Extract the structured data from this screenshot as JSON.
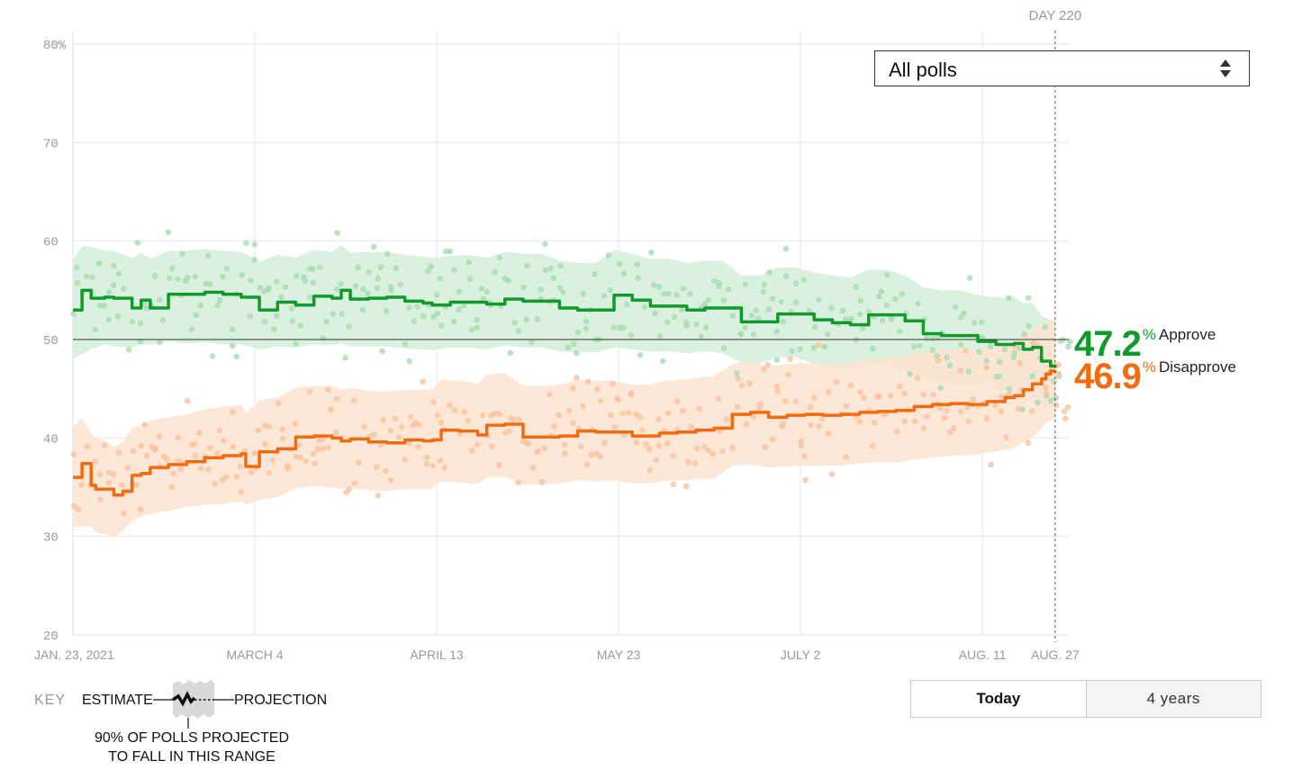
{
  "filter": {
    "selected": "All polls"
  },
  "day_marker": {
    "label": "DAY 220"
  },
  "readouts": {
    "approve": {
      "value": "47.2",
      "unit": "%",
      "label": "Approve"
    },
    "disapprove": {
      "value": "46.9",
      "unit": "%",
      "label": "Disapprove"
    }
  },
  "timeframe": {
    "today_label": "Today",
    "years_label": "4 years"
  },
  "key": {
    "title": "KEY",
    "estimate_label": "ESTIMATE",
    "projection_label": "PROJECTION",
    "range_note_line1": "90% OF POLLS PROJECTED",
    "range_note_line2": "TO FALL IN THIS RANGE"
  },
  "colors": {
    "approve": "#0f9a2b",
    "approve_band": "#d5efd9",
    "approve_dots": "#a9dcb1",
    "disapprove": "#f26b0f",
    "disapprove_band": "#fde3d0",
    "disapprove_dots": "#f8c3a0",
    "grid": "#e6e6e6",
    "midline": "#333333"
  },
  "chart_data": {
    "type": "line",
    "x_unit": "day",
    "xlim": [
      1,
      220
    ],
    "ylim": [
      20,
      80
    ],
    "y_ticks": [
      20,
      30,
      40,
      50,
      60,
      70,
      80
    ],
    "y_tick_labels": [
      "20",
      "30",
      "40",
      "50",
      "60",
      "70",
      "80%"
    ],
    "x_ticks": [
      {
        "day": 1,
        "label": "JAN. 23, 2021"
      },
      {
        "day": 41,
        "label": "MARCH 4"
      },
      {
        "day": 81,
        "label": "APRIL 13"
      },
      {
        "day": 121,
        "label": "MAY 23"
      },
      {
        "day": 161,
        "label": "JULY 2"
      },
      {
        "day": 201,
        "label": "AUG. 11"
      },
      {
        "day": 217,
        "label": "AUG. 27"
      }
    ],
    "reference_line": 50,
    "grid": true,
    "series": [
      {
        "name": "Approve",
        "x": [
          1,
          3,
          5,
          8,
          10,
          14,
          16,
          18,
          22,
          26,
          30,
          34,
          38,
          42,
          46,
          50,
          54,
          58,
          60,
          62,
          66,
          70,
          74,
          78,
          80,
          84,
          88,
          92,
          96,
          100,
          104,
          108,
          112,
          116,
          120,
          124,
          128,
          132,
          136,
          140,
          144,
          148,
          152,
          156,
          160,
          164,
          168,
          172,
          176,
          180,
          184,
          188,
          192,
          196,
          200,
          204,
          208,
          210,
          212,
          214,
          216,
          217
        ],
        "values": [
          53,
          55,
          54.2,
          54.3,
          54.2,
          53.2,
          54,
          53.2,
          54.6,
          54.6,
          54.8,
          54.6,
          54.3,
          53,
          53.8,
          53.5,
          54.4,
          54.2,
          55,
          54.1,
          54.2,
          54.3,
          53.9,
          53.7,
          53.5,
          53.8,
          53.8,
          53.6,
          54.1,
          53.9,
          53.9,
          53.2,
          53.0,
          53.0,
          54.5,
          54.0,
          53.4,
          53.4,
          53.0,
          53.2,
          53.2,
          51.8,
          51.8,
          52.6,
          52.6,
          52.0,
          51.7,
          51.5,
          52.5,
          52.5,
          51.9,
          50.6,
          50.4,
          50.4,
          49.8,
          49.5,
          49.6,
          49.0,
          49.2,
          47.8,
          47.3,
          47.2
        ],
        "band_low": [
          48,
          48.5,
          49,
          49.5,
          49.3,
          49.2,
          49.5,
          49.5,
          49.8,
          49.6,
          49.7,
          49.5,
          49.5,
          49,
          49.3,
          49.2,
          49.5,
          49.4,
          49.6,
          49.3,
          49.3,
          49.3,
          49.1,
          49,
          48.9,
          49.2,
          49.2,
          49,
          49.4,
          49.2,
          49.2,
          48.8,
          48.7,
          48.7,
          49.2,
          49,
          48.8,
          48.8,
          48.6,
          48.8,
          48.6,
          47.6,
          47.6,
          48.2,
          48.2,
          47.5,
          47.2,
          47.1,
          47.4,
          47.3,
          46.7,
          45.9,
          45.6,
          45.5,
          45.2,
          45,
          44.9,
          44.6,
          44.3,
          43.5,
          43.2,
          43.2
        ],
        "band_high": [
          58,
          59.5,
          59.4,
          59,
          59,
          58.3,
          58.8,
          58.2,
          59,
          59,
          59.2,
          59,
          58.9,
          57.9,
          58.6,
          58.3,
          59.1,
          58.9,
          59.6,
          58.8,
          58.9,
          58.9,
          58.6,
          58.4,
          58.3,
          58.5,
          58.6,
          58.3,
          58.9,
          58.7,
          58.7,
          58.0,
          57.8,
          57.8,
          59.1,
          58.7,
          58.2,
          58.2,
          57.8,
          58.0,
          58.0,
          56.5,
          56.5,
          57.3,
          57.3,
          56.8,
          56.5,
          56.3,
          57.1,
          57.1,
          56.5,
          55.3,
          55.0,
          55.0,
          54.5,
          54.3,
          54.3,
          53.7,
          53.7,
          52.4,
          52.0,
          52.0
        ]
      },
      {
        "name": "Disapprove",
        "x": [
          1,
          3,
          5,
          6,
          8,
          10,
          12,
          14,
          16,
          18,
          22,
          26,
          30,
          34,
          38,
          39,
          42,
          46,
          50,
          54,
          58,
          60,
          62,
          66,
          70,
          74,
          78,
          80,
          82,
          86,
          90,
          92,
          96,
          100,
          104,
          108,
          112,
          116,
          120,
          124,
          128,
          130,
          134,
          138,
          142,
          146,
          150,
          154,
          158,
          162,
          166,
          170,
          174,
          178,
          182,
          186,
          190,
          194,
          198,
          202,
          206,
          208,
          210,
          212,
          214,
          215,
          216,
          217
        ],
        "values": [
          36,
          37.4,
          35.2,
          34.8,
          34.8,
          34.2,
          34.6,
          36.2,
          36.4,
          37.0,
          37.3,
          37.6,
          38.0,
          38.2,
          38.4,
          37.1,
          38.6,
          38.9,
          40.1,
          40.2,
          40.0,
          39.7,
          39.9,
          39.6,
          39.5,
          39.8,
          39.7,
          39.8,
          40.8,
          40.7,
          40.3,
          41.3,
          41.4,
          40.1,
          40.1,
          40.2,
          40.7,
          40.6,
          40.6,
          40.2,
          40.2,
          40.5,
          40.6,
          40.8,
          41.0,
          42.4,
          42.6,
          42.1,
          42.3,
          42.4,
          42.3,
          42.4,
          42.6,
          42.7,
          42.8,
          43.2,
          43.4,
          43.5,
          43.4,
          43.7,
          44.1,
          44.3,
          44.9,
          45.5,
          46.0,
          46.5,
          46.8,
          46.9
        ],
        "band_low": [
          31,
          31,
          31,
          30.5,
          30.2,
          29.9,
          30.6,
          31.6,
          32,
          32.3,
          32.6,
          33,
          33.2,
          33.3,
          33.6,
          33.2,
          33.7,
          34,
          34.9,
          35.1,
          35,
          34.8,
          34.9,
          34.7,
          34.6,
          34.8,
          34.8,
          34.8,
          35.6,
          35.5,
          35.3,
          36.0,
          36.1,
          35.3,
          35.3,
          35.4,
          35.7,
          35.6,
          35.7,
          35.4,
          35.4,
          35.6,
          35.7,
          35.8,
          35.9,
          37.2,
          37.3,
          37.0,
          37.1,
          37.2,
          37.2,
          37.2,
          37.4,
          37.5,
          37.5,
          37.8,
          38.0,
          38.2,
          38.2,
          38.5,
          38.8,
          39.0,
          39.5,
          40.0,
          41.0,
          41.5,
          41.8,
          42.0
        ],
        "band_high": [
          41,
          42,
          40.5,
          40,
          39.8,
          39.1,
          39.6,
          41,
          41.3,
          41.8,
          42.1,
          42.4,
          42.9,
          43.2,
          43.4,
          42.5,
          43.8,
          44.1,
          45.1,
          45.3,
          45.2,
          44.9,
          45.1,
          44.8,
          44.7,
          44.9,
          44.9,
          44.9,
          45.9,
          45.8,
          45.5,
          46.4,
          46.6,
          45.3,
          45.3,
          45.4,
          45.9,
          45.8,
          45.8,
          45.4,
          45.4,
          45.7,
          45.9,
          46.1,
          46.3,
          47.5,
          47.8,
          47.3,
          47.5,
          47.6,
          47.5,
          47.6,
          47.9,
          48.0,
          48.2,
          48.6,
          48.9,
          49.0,
          48.9,
          49.2,
          49.6,
          49.8,
          50.5,
          51.0,
          51.5,
          51.8,
          52.0,
          52.0
        ]
      }
    ]
  }
}
